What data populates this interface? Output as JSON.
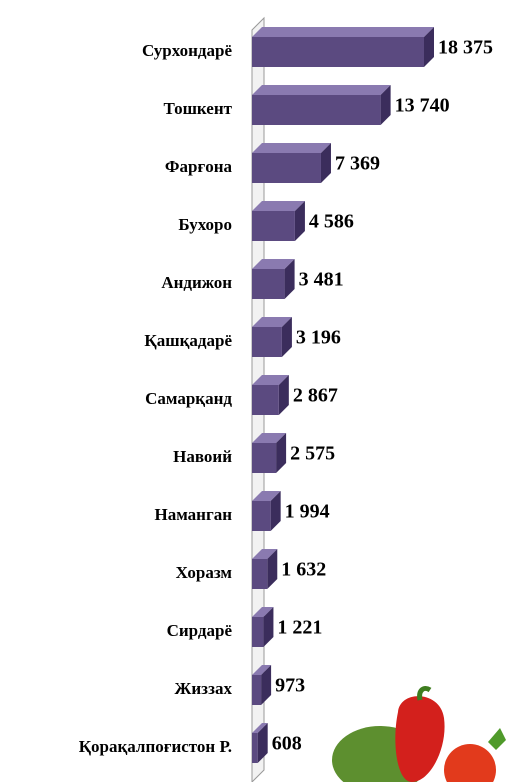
{
  "chart_data": {
    "type": "bar",
    "orientation": "horizontal",
    "color": "#5b4a80",
    "categories": [
      "Сурхондарё",
      "Тошкент",
      "Фарғона",
      "Бухоро",
      "Андижон",
      "Қашқадарё",
      "Самарқанд",
      "Навоий",
      "Наманган",
      "Хоразм",
      "Сирдарё",
      "Жиззах",
      "Қорақалпоғистон Р."
    ],
    "values": [
      18375,
      13740,
      7369,
      4586,
      3481,
      3196,
      2867,
      2575,
      1994,
      1632,
      1221,
      973,
      608
    ],
    "value_labels": [
      "18 375",
      "13 740",
      "7 369",
      "4 586",
      "3 481",
      "3 196",
      "2 867",
      "2 575",
      "1 994",
      "1 632",
      "1 221",
      "973",
      "608"
    ]
  }
}
